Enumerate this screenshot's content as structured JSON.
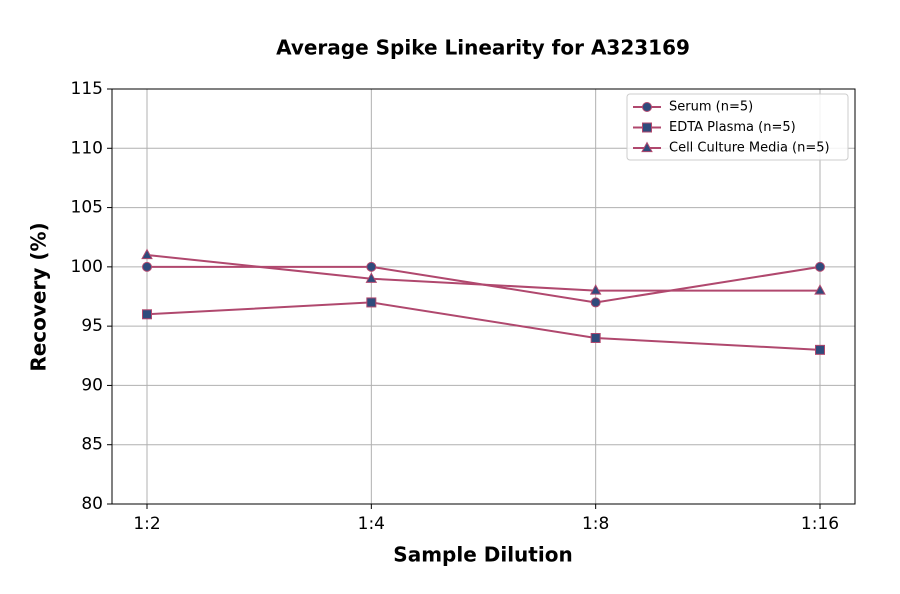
{
  "chart_data": {
    "type": "line",
    "title": "Average Spike Linearity for A323169",
    "x_label": "Sample Dilution",
    "y_label": "Recovery (%)",
    "categories": [
      "1:2",
      "1:4",
      "1:8",
      "1:16"
    ],
    "series": [
      {
        "name": "Serum (n=5)",
        "color": "#b0486e",
        "marker": "circle",
        "marker_color": "#2f4b7c",
        "values": [
          100,
          100,
          97,
          100
        ]
      },
      {
        "name": "EDTA Plasma (n=5)",
        "color": "#b0486e",
        "marker": "square",
        "marker_color": "#2f4b7c",
        "values": [
          96,
          97,
          94,
          93
        ]
      },
      {
        "name": "Cell Culture Media (n=5)",
        "color": "#b0486e",
        "marker": "triangle",
        "marker_color": "#2f4b7c",
        "values": [
          101,
          99,
          98,
          98
        ]
      }
    ],
    "ylim": [
      80,
      115
    ],
    "yticks": [
      80,
      85,
      90,
      95,
      100,
      105,
      110,
      115
    ],
    "grid": true,
    "legend": "upper right"
  }
}
